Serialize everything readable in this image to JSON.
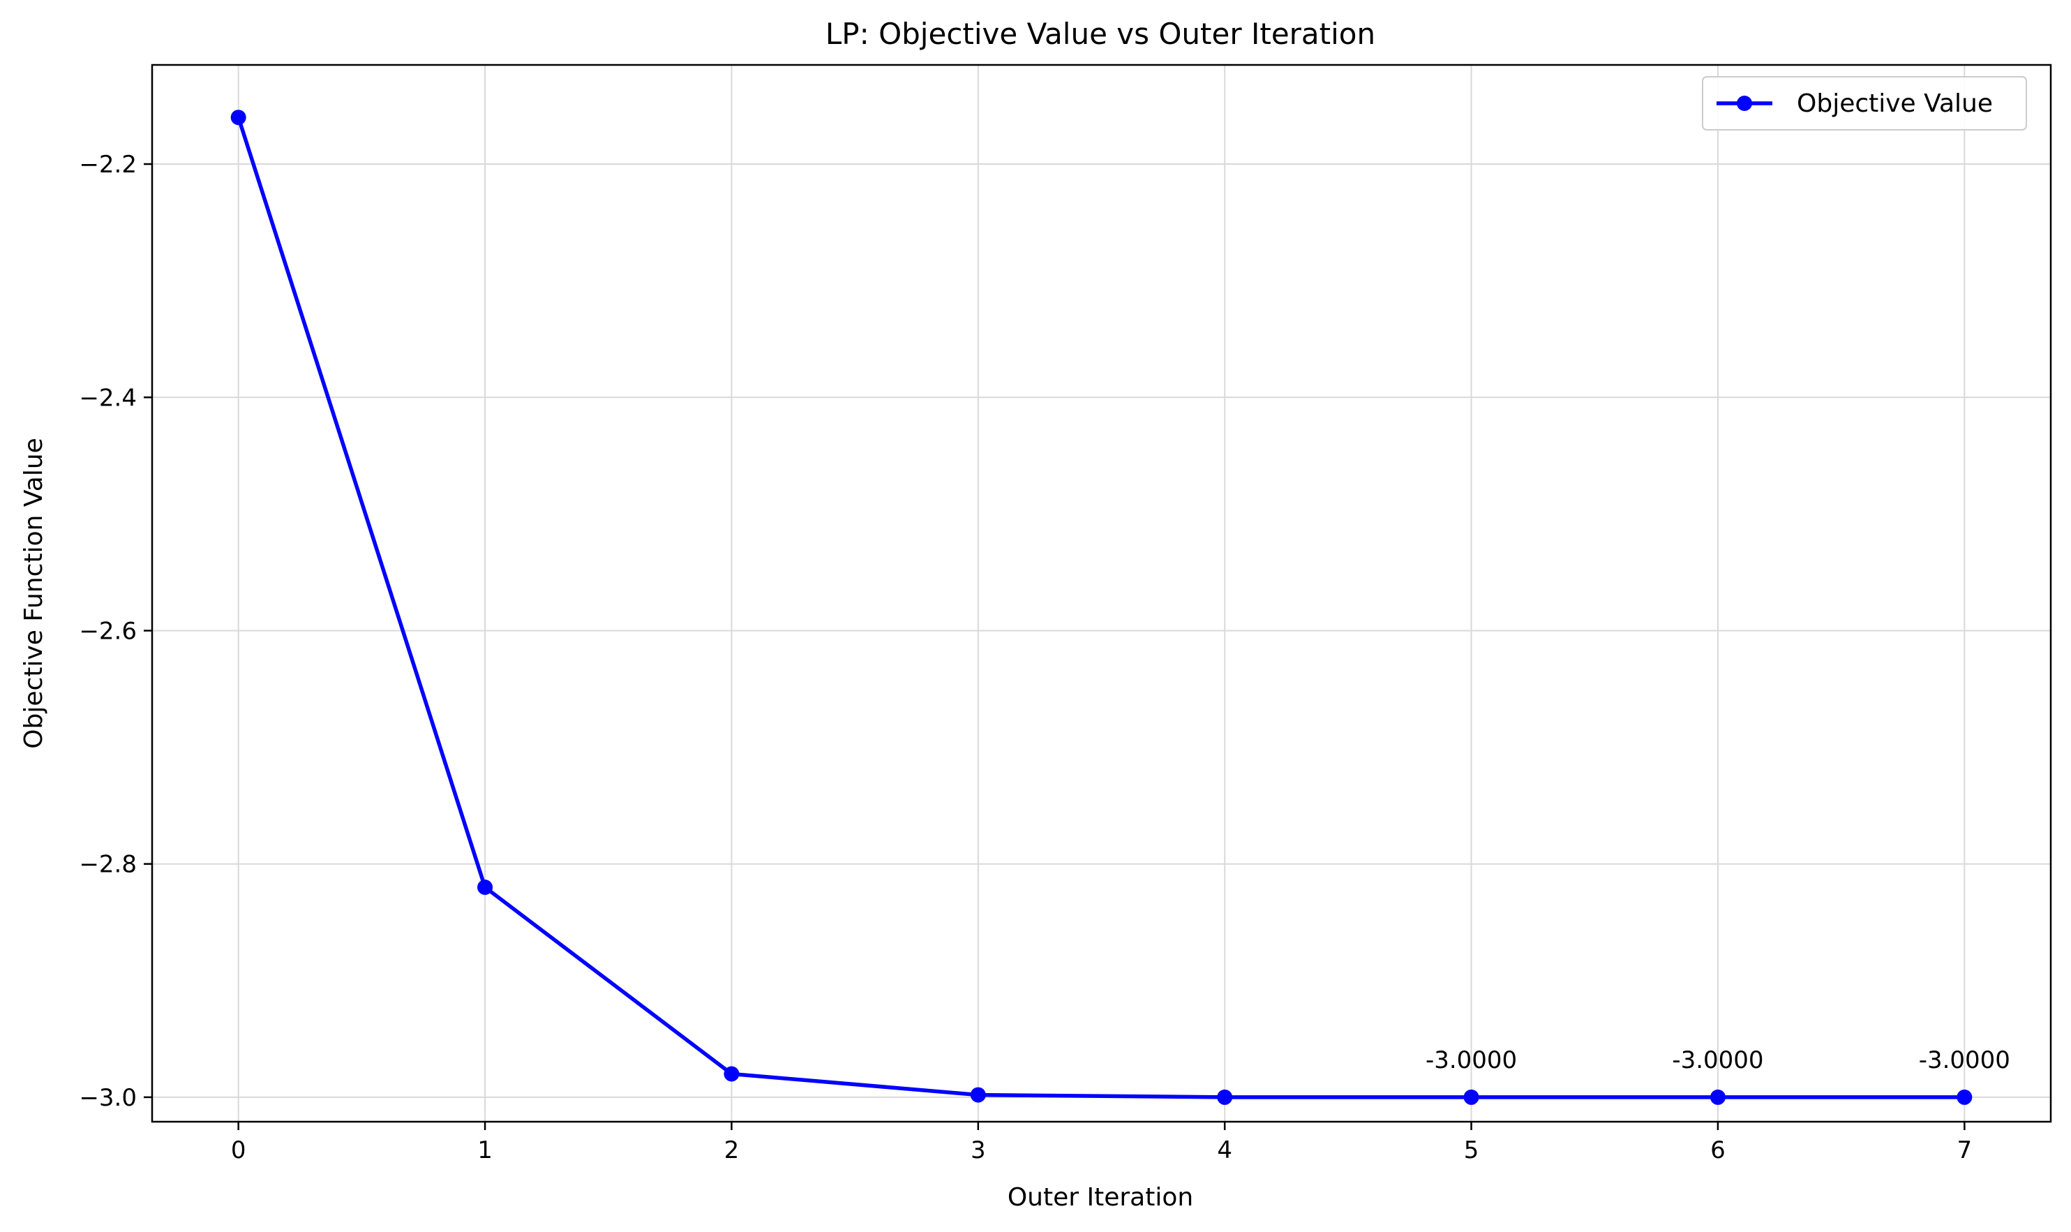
{
  "chart_data": {
    "type": "line",
    "title": "LP: Objective Value vs Outer Iteration",
    "xlabel": "Outer Iteration",
    "ylabel": "Objective Function Value",
    "xlim": [
      -0.35,
      7.35
    ],
    "ylim": [
      -3.021,
      -2.115
    ],
    "xticks": [
      0,
      1,
      2,
      3,
      4,
      5,
      6,
      7
    ],
    "xtick_labels": [
      "0",
      "1",
      "2",
      "3",
      "4",
      "5",
      "6",
      "7"
    ],
    "yticks": [
      -2.2,
      -2.4,
      -2.6,
      -2.8,
      -3.0
    ],
    "ytick_labels": [
      "−2.2",
      "−2.4",
      "−2.6",
      "−2.8",
      "−3.0"
    ],
    "grid": true,
    "legend_position": "top-right",
    "series": [
      {
        "name": "Objective Value",
        "color": "#0000ff",
        "marker": "circle",
        "x": [
          0,
          1,
          2,
          3,
          4,
          5,
          6,
          7
        ],
        "y": [
          -2.16,
          -2.82,
          -2.98,
          -2.998,
          -3.0,
          -3.0,
          -3.0,
          -3.0
        ]
      }
    ],
    "annotations": [
      {
        "x": 5,
        "y": -3.0,
        "text": "-3.0000"
      },
      {
        "x": 6,
        "y": -3.0,
        "text": "-3.0000"
      },
      {
        "x": 7,
        "y": -3.0,
        "text": "-3.0000"
      }
    ]
  }
}
